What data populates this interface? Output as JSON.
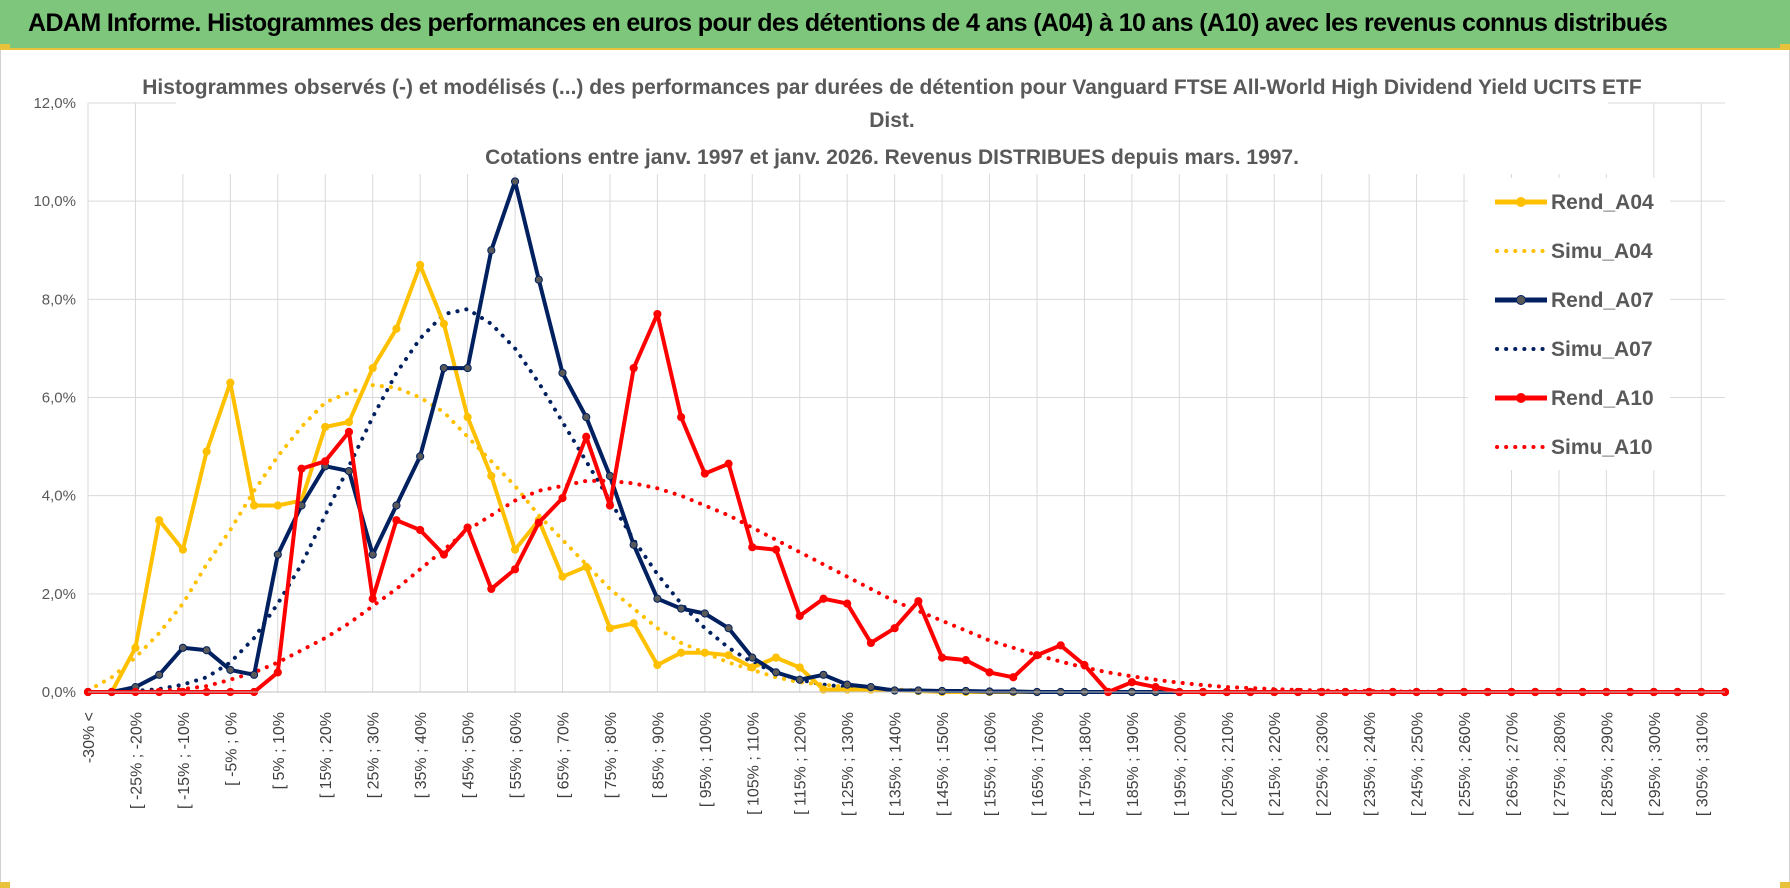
{
  "banner": {
    "title": "ADAM Informe. Histogrammes des performances en euros pour des détentions de 4 ans (A04) à 10 ans (A10) avec les revenus connus distribués"
  },
  "colors": {
    "banner_bg": "#7dc67b",
    "accent": "#e8c23a",
    "A04": "#ffc000",
    "A07": "#002060",
    "A10": "#ff0000"
  },
  "chart_data": {
    "type": "line",
    "title_lines": [
      "Histogrammes observés (-) et modélisés (...) des performances par durées de détention pour Vanguard FTSE All-World High Dividend Yield UCITS ETF",
      "Dist.",
      "Cotations entre janv. 1997 et janv. 2026. Revenus DISTRIBUES depuis mars. 1997."
    ],
    "ylim": [
      0,
      12
    ],
    "yticks": [
      0,
      2,
      4,
      6,
      8,
      10,
      12
    ],
    "ytick_labels": [
      "0,0%",
      "2,0%",
      "4,0%",
      "6,0%",
      "8,0%",
      "10,0%",
      "12,0%"
    ],
    "grid": true,
    "legend_position": "top-right",
    "x_labels": [
      "-30% <",
      "[ -25% ; -20%",
      "[ -15% ; -10%",
      "[ -5% ; 0%",
      "[ 5% ; 10%",
      "[ 15% ; 20%",
      "[ 25% ; 30%",
      "[ 35% ; 40%",
      "[ 45% ; 50%",
      "[ 55% ; 60%",
      "[ 65% ; 70%",
      "[ 75% ; 80%",
      "[ 85% ; 90%",
      "[ 95% ; 100%",
      "[ 105% ; 110%",
      "[ 115% ; 120%",
      "[ 125% ; 130%",
      "[ 135% ; 140%",
      "[ 145% ; 150%",
      "[ 155% ; 160%",
      "[ 165% ; 170%",
      "[ 175% ; 180%",
      "[ 185% ; 190%",
      "[ 195% ; 200%",
      "[ 205% ; 210%",
      "[ 215% ; 220%",
      "[ 225% ; 230%",
      "[ 235% ; 240%",
      "[ 245% ; 250%",
      "[ 255% ; 260%",
      "[ 265% ; 270%",
      "[ 275% ; 280%",
      "[ 285% ; 290%",
      "[ 295% ; 300%",
      "[ 305% ; 310%"
    ],
    "series": [
      {
        "name": "Rend_A04",
        "style": "solid",
        "color": "#ffc000",
        "values": [
          0,
          0,
          0.9,
          3.5,
          2.9,
          4.9,
          6.3,
          3.8,
          3.8,
          3.9,
          5.4,
          5.5,
          6.6,
          7.4,
          8.7,
          7.5,
          5.6,
          4.4,
          2.9,
          3.5,
          2.35,
          2.55,
          1.3,
          1.4,
          0.55,
          0.8,
          0.8,
          0.75,
          0.5,
          0.7,
          0.5,
          0.05,
          0.05,
          0.05,
          0.03,
          0.02,
          0,
          0,
          0,
          0
        ]
      },
      {
        "name": "Simu_A04",
        "style": "dotted",
        "color": "#ffc000",
        "values": [
          0.03,
          0.3,
          0.7,
          1.2,
          1.8,
          2.6,
          3.3,
          4.1,
          4.8,
          5.4,
          5.9,
          6.1,
          6.25,
          6.2,
          6.0,
          5.7,
          5.2,
          4.7,
          4.2,
          3.6,
          3.1,
          2.6,
          2.1,
          1.7,
          1.3,
          1.0,
          0.8,
          0.6,
          0.45,
          0.3,
          0.2,
          0.15,
          0.1,
          0.07,
          0.05,
          0.03,
          0.02,
          0.01,
          0,
          0
        ]
      },
      {
        "name": "Rend_A07",
        "style": "solid",
        "color": "#002060",
        "values": [
          0,
          0,
          0.1,
          0.35,
          0.9,
          0.85,
          0.45,
          0.35,
          2.8,
          3.8,
          4.6,
          4.5,
          2.8,
          3.8,
          4.8,
          6.6,
          6.6,
          9.0,
          10.4,
          8.4,
          6.5,
          5.6,
          4.4,
          3.0,
          1.9,
          1.7,
          1.6,
          1.3,
          0.7,
          0.4,
          0.25,
          0.35,
          0.15,
          0.1,
          0.03,
          0.03,
          0.02,
          0.02,
          0.01,
          0.01
        ]
      },
      {
        "name": "Simu_A07",
        "style": "dotted",
        "color": "#002060",
        "values": [
          0,
          0,
          0.02,
          0.06,
          0.15,
          0.3,
          0.6,
          1.1,
          1.8,
          2.6,
          3.6,
          4.6,
          5.6,
          6.5,
          7.2,
          7.7,
          7.8,
          7.5,
          7.0,
          6.3,
          5.5,
          4.7,
          3.9,
          3.1,
          2.4,
          1.8,
          1.3,
          0.9,
          0.6,
          0.4,
          0.25,
          0.15,
          0.1,
          0.06,
          0.04,
          0.02,
          0.01,
          0,
          0,
          0
        ]
      },
      {
        "name": "Rend_A10",
        "style": "solid",
        "color": "#ff0000",
        "values": [
          0,
          0,
          0,
          0,
          0,
          0,
          0,
          0,
          0.4,
          4.55,
          4.7,
          5.3,
          1.9,
          3.5,
          3.3,
          2.8,
          3.35,
          2.1,
          2.5,
          3.45,
          3.95,
          5.2,
          3.8,
          6.6,
          7.7,
          5.6,
          4.45,
          4.65,
          2.95,
          2.9,
          1.55,
          1.9,
          1.8,
          1.0,
          1.3,
          1.85,
          0.7,
          0.65,
          0.4,
          0.3,
          0.75,
          0.95,
          0.55,
          0,
          0.2,
          0.1,
          0,
          0,
          0,
          0,
          0,
          0,
          0,
          0,
          0,
          0,
          0,
          0,
          0,
          0,
          0,
          0,
          0,
          0,
          0,
          0,
          0,
          0,
          0,
          0
        ]
      },
      {
        "name": "Simu_A10",
        "style": "dotted",
        "color": "#ff0000",
        "values": [
          0,
          0,
          0,
          0.02,
          0.06,
          0.12,
          0.25,
          0.4,
          0.6,
          0.85,
          1.1,
          1.4,
          1.75,
          2.1,
          2.5,
          2.9,
          3.3,
          3.6,
          3.9,
          4.1,
          4.2,
          4.3,
          4.3,
          4.25,
          4.15,
          4.0,
          3.8,
          3.6,
          3.35,
          3.1,
          2.85,
          2.6,
          2.35,
          2.1,
          1.85,
          1.65,
          1.45,
          1.25,
          1.05,
          0.9,
          0.75,
          0.62,
          0.5,
          0.4,
          0.32,
          0.25,
          0.19,
          0.14,
          0.1,
          0.08,
          0.06,
          0.04,
          0.03,
          0.02,
          0.02,
          0.01,
          0.01,
          0,
          0,
          0,
          0,
          0,
          0,
          0,
          0,
          0,
          0,
          0,
          0,
          0
        ]
      }
    ]
  }
}
